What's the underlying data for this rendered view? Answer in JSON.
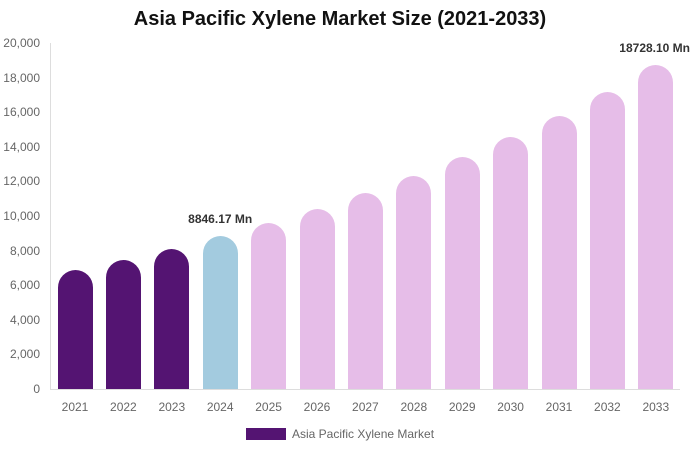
{
  "chart_data": {
    "type": "bar",
    "title": "Asia Pacific Xylene Market Size (2021-2033)",
    "xlabel": "",
    "ylabel": "",
    "ylim": [
      0,
      20000
    ],
    "yticks": [
      "0",
      "2,000",
      "4,000",
      "6,000",
      "8,000",
      "10,000",
      "12,000",
      "14,000",
      "16,000",
      "18,000",
      "20,000"
    ],
    "categories": [
      "2021",
      "2022",
      "2023",
      "2024",
      "2025",
      "2026",
      "2027",
      "2028",
      "2029",
      "2030",
      "2031",
      "2032",
      "2033"
    ],
    "series": [
      {
        "name": "Asia Pacific Xylene Market",
        "values": [
          6880,
          7460,
          8090,
          8846.17,
          9600,
          10400,
          11330,
          12310,
          13410,
          14570,
          15780,
          17170,
          18728.1
        ]
      }
    ],
    "bar_colors": [
      "#541472",
      "#541472",
      "#541472",
      "#a3cbdf",
      "#e6bde8",
      "#e6bde8",
      "#e6bde8",
      "#e6bde8",
      "#e6bde8",
      "#e6bde8",
      "#e6bde8",
      "#e6bde8",
      "#e6bde8"
    ],
    "annotations": [
      {
        "category": "2024",
        "text": "8846.17 Mn"
      },
      {
        "category": "2033",
        "text": "18728.10 Mn"
      }
    ],
    "legend": {
      "position": "bottom",
      "entries": [
        {
          "label": "Asia Pacific Xylene Market",
          "color": "#541472"
        }
      ]
    },
    "grid": false
  }
}
